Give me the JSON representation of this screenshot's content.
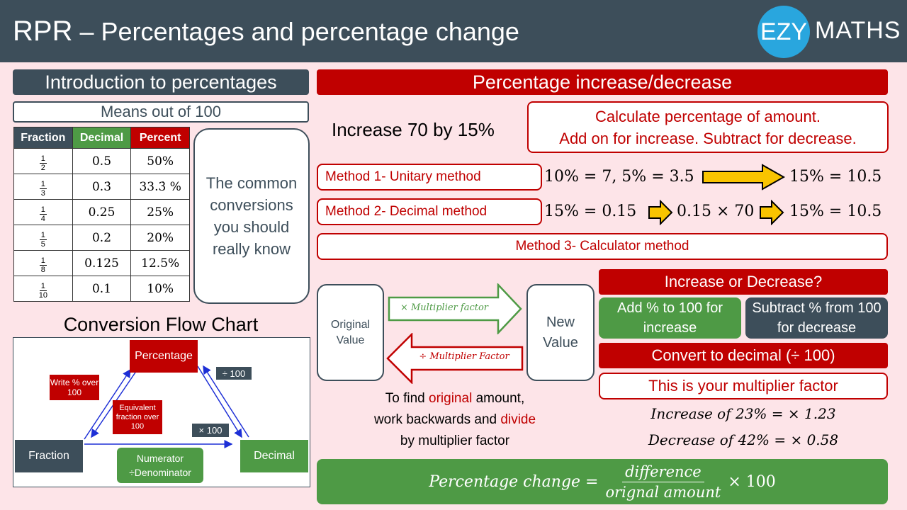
{
  "header": {
    "title_prefix": "RPR",
    "title_dash": " – ",
    "title_main": "Percentages and percentage change",
    "logo_left": "EZY",
    "logo_right": "MATHS"
  },
  "intro": {
    "title": "Introduction to percentages",
    "means": "Means out of 100",
    "table": {
      "headers": [
        "Fraction",
        "Decimal",
        "Percent"
      ],
      "header_colors": [
        "#3d4e5a",
        "#4e9a45",
        "#c00000"
      ],
      "rows": [
        {
          "num": "1",
          "den": "2",
          "decimal": "0.5",
          "percent": "50%"
        },
        {
          "num": "1",
          "den": "3",
          "decimal": "0.3̇",
          "percent": "33.3̇ %"
        },
        {
          "num": "1",
          "den": "4",
          "decimal": "0.25",
          "percent": "25%"
        },
        {
          "num": "1",
          "den": "5",
          "decimal": "0.2",
          "percent": "20%"
        },
        {
          "num": "1",
          "den": "8",
          "decimal": "0.125",
          "percent": "12.5%"
        },
        {
          "num": "1",
          "den": "10",
          "decimal": "0.1",
          "percent": "10%"
        }
      ]
    },
    "note": "The common conversions you should really know"
  },
  "flow": {
    "title": "Conversion Flow Chart",
    "percentage": "Percentage",
    "fraction": "Fraction",
    "decimal": "Decimal",
    "write_pct": "Write % over 100",
    "equiv": "Equivalent fraction over 100",
    "div100": "÷ 100",
    "mul100": "× 100",
    "numerator": "Numerator ÷Denominator"
  },
  "pct": {
    "title": "Percentage increase/decrease",
    "example": "Increase 70 by 15%",
    "calc_line1": "Calculate percentage of amount.",
    "calc_line2": "Add on for increase. Subtract for decrease.",
    "method1": "Method 1- Unitary method",
    "m1_a": "10% = 7, 5% = 3.5",
    "m1_b": "15% = 10.5",
    "method2": "Method 2- Decimal method",
    "m2_a": "15% = 0.15",
    "m2_b": "0.15 × 70",
    "m2_c": "15% = 10.5",
    "method3": "Method 3- Calculator method"
  },
  "mult": {
    "original": "Original Value",
    "new": "New Value",
    "times_mf": "× Multiplier factor",
    "div_mf": "÷ Multiplier Factor",
    "find_1a": "To find ",
    "find_1b": "original",
    "find_1c": " amount,",
    "find_2a": "work backwards and ",
    "find_2b": "divide",
    "find_3": "by multiplier factor"
  },
  "incdec": {
    "title": "Increase or Decrease?",
    "add": "Add % to 100 for increase",
    "sub": "Subtract % from 100 for decrease",
    "convert": "Convert to decimal (÷ 100)",
    "multiplier": "This is your multiplier factor",
    "ex1": "Increase of 23% = × 1.23",
    "ex2": "Decrease of 42% = × 0.58"
  },
  "formula": {
    "left": "Percentage change =",
    "num": "difference",
    "den": "orignal amount",
    "right": "× 100"
  }
}
